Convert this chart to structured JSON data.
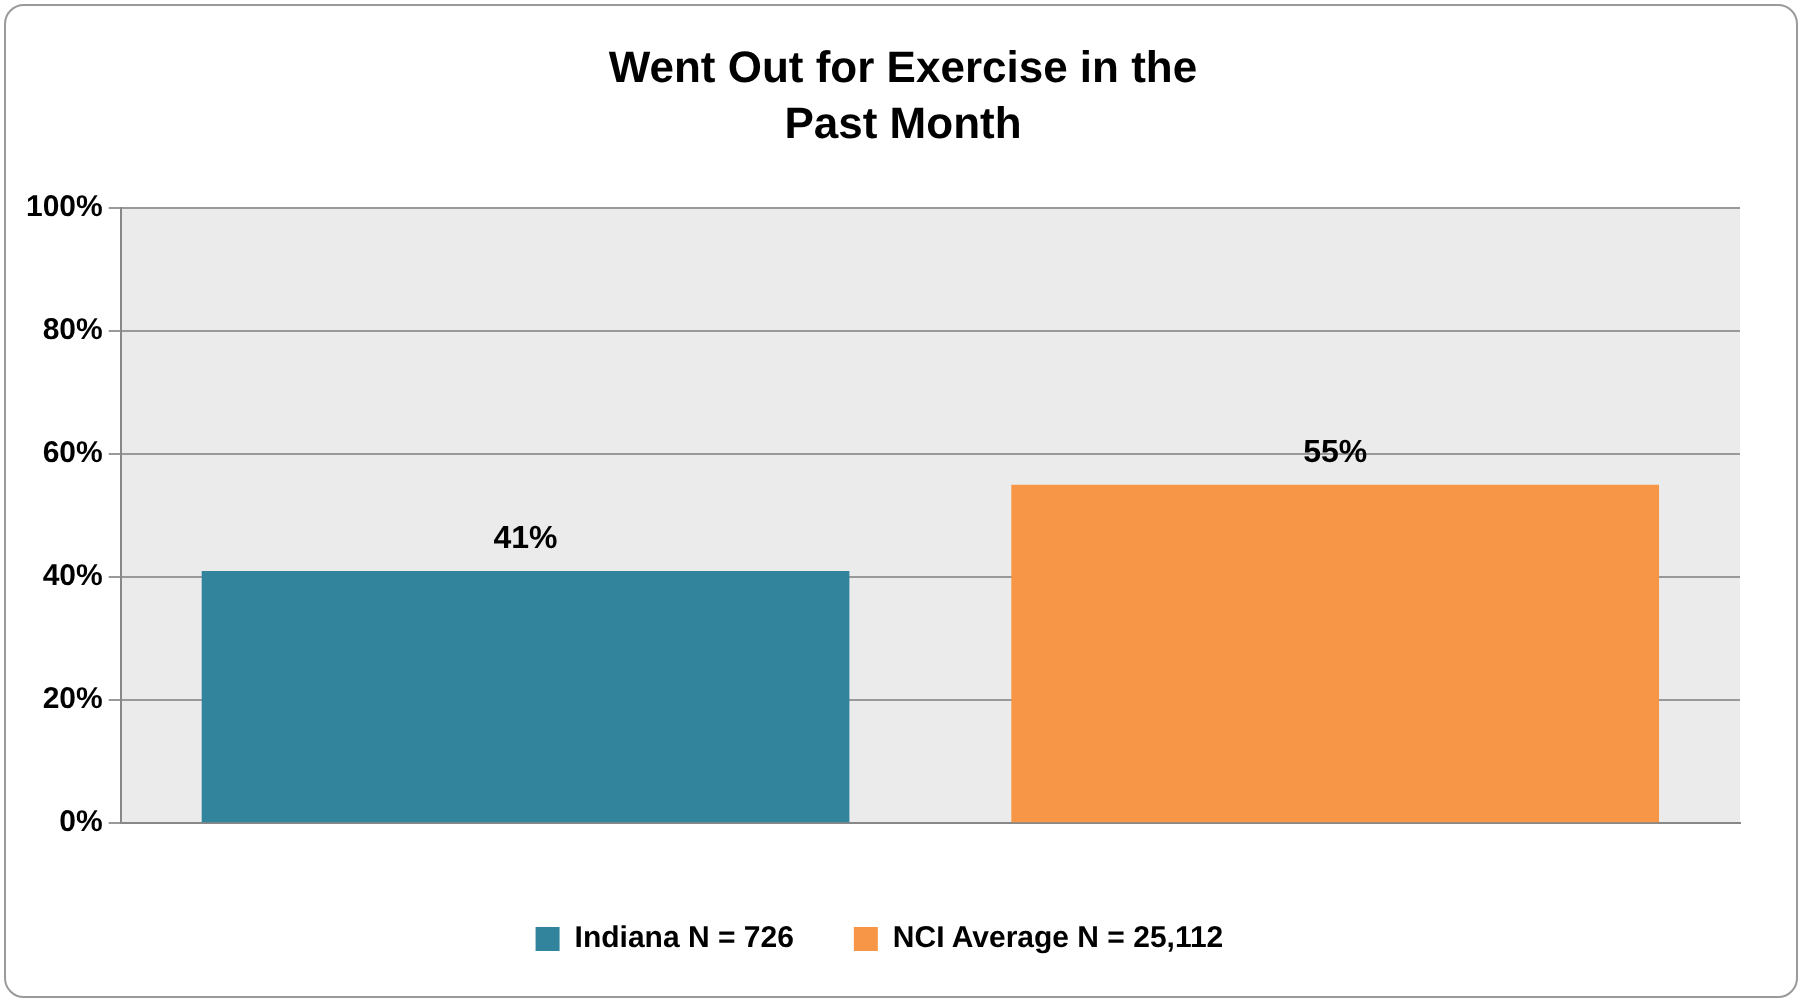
{
  "chart_data": {
    "type": "bar",
    "title": "Went Out for Exercise in the Past Month",
    "categories": [
      null,
      null
    ],
    "series": [
      {
        "name": "Indiana N = 726",
        "color": "#31849b",
        "values": [
          41,
          null
        ],
        "value_labels": [
          "41%",
          null
        ]
      },
      {
        "name": "NCI Average N = 25,112",
        "color": "#f79646",
        "values": [
          null,
          55
        ],
        "value_labels": [
          null,
          "55%"
        ]
      }
    ],
    "ylim": [
      0,
      100
    ],
    "yticks": [
      {
        "value": 0,
        "label": "0%"
      },
      {
        "value": 20,
        "label": "20%"
      },
      {
        "value": 40,
        "label": "40%"
      },
      {
        "value": 60,
        "label": "60%"
      },
      {
        "value": 80,
        "label": "80%"
      },
      {
        "value": 100,
        "label": "100%"
      }
    ],
    "grid": "y",
    "legend": "bottom"
  }
}
